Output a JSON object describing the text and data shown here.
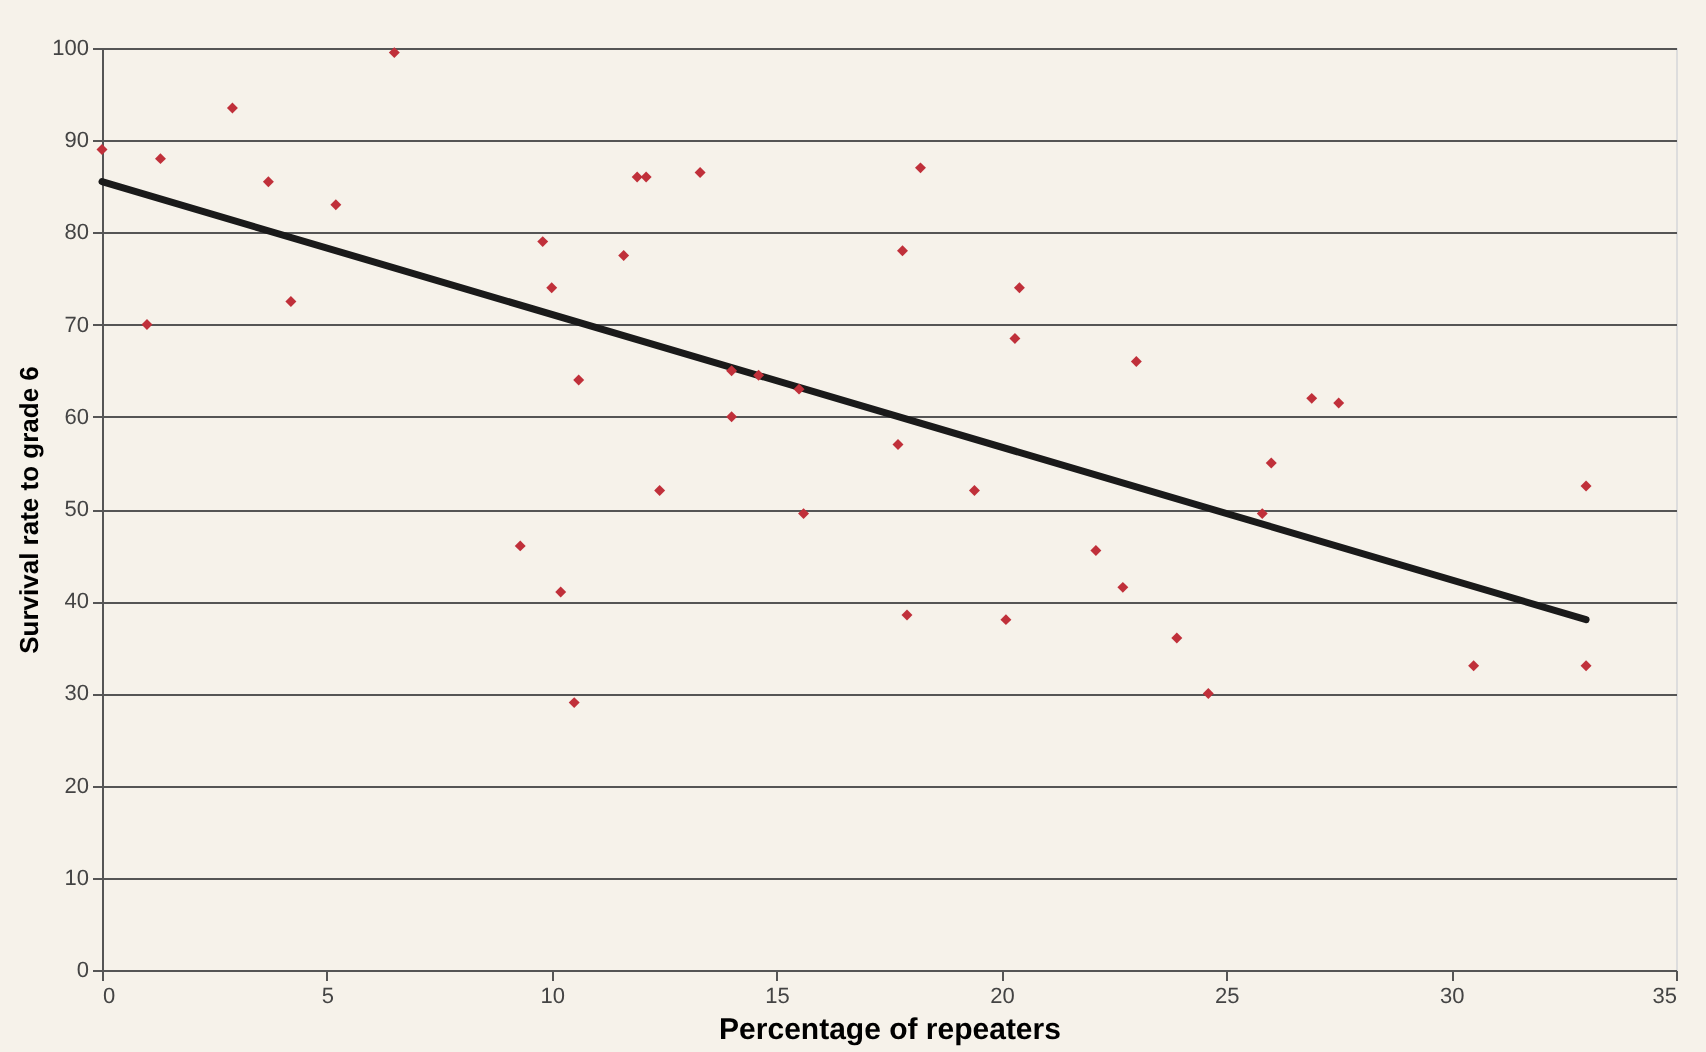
{
  "chart_data": {
    "type": "scatter",
    "xlabel": "Percentage of repeaters",
    "ylabel": "Survival rate to grade 6",
    "xlim": [
      0,
      35
    ],
    "xticks": [
      0,
      5,
      10,
      15,
      20,
      25,
      30,
      35
    ],
    "ylim": [
      0,
      100
    ],
    "yticks": [
      0,
      10,
      20,
      30,
      40,
      50,
      60,
      70,
      80,
      90,
      100
    ],
    "grid": "y",
    "marker": "diamond",
    "series": [
      {
        "color": "#c0303a",
        "x": [
          0,
          1,
          1.3,
          2.9,
          3.7,
          4.2,
          5.2,
          6.5,
          9.3,
          9.8,
          10,
          10.2,
          10.5,
          10.6,
          11.6,
          11.9,
          12.1,
          12.4,
          13.3,
          14,
          14,
          14.6,
          15.5,
          15.6,
          17.7,
          17.8,
          17.9,
          18.2,
          19.4,
          20.1,
          20.3,
          20.4,
          22.1,
          22.7,
          23,
          23.9,
          24.6,
          25.8,
          26,
          26.9,
          27.5,
          30.5,
          33,
          33
        ],
        "values": [
          89,
          70,
          88,
          93.5,
          85.5,
          72.5,
          83,
          99.5,
          46,
          79,
          74,
          41,
          29,
          64,
          77.5,
          86,
          86,
          52,
          86.5,
          60,
          65,
          64.5,
          63,
          49.5,
          57,
          78,
          38.5,
          87,
          52,
          38,
          68.5,
          74,
          45.5,
          41.5,
          66,
          36,
          30,
          49.5,
          55,
          62,
          61.5,
          33,
          52.5,
          33
        ]
      },
      {
        "type": "line",
        "color": "#1a1a1a",
        "marker": "none",
        "line_style": "solid",
        "x": [
          0,
          33
        ],
        "values": [
          85.5,
          38
        ]
      }
    ]
  }
}
